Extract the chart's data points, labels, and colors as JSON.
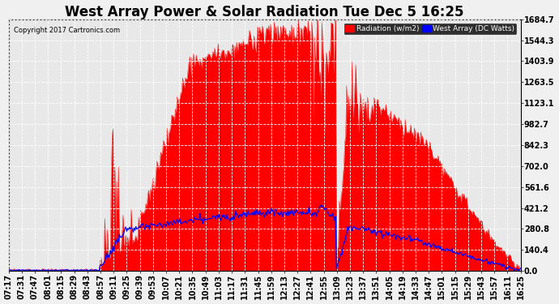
{
  "title": "West Array Power & Solar Radiation Tue Dec 5 16:25",
  "copyright": "Copyright 2017 Cartronics.com",
  "background_color": "#f0f0f0",
  "plot_bg_color": "#e8e8e8",
  "grid_color": "#ffffff",
  "yticks": [
    0.0,
    140.4,
    280.8,
    421.2,
    561.6,
    702.0,
    842.3,
    982.7,
    1123.1,
    1263.5,
    1403.9,
    1544.3,
    1684.7
  ],
  "ymax": 1684.7,
  "ymin": 0.0,
  "radiation_color": "#ff0000",
  "power_color": "#0000ff",
  "legend_radiation_label": "Radiation (w/m2)",
  "legend_power_label": "West Array (DC Watts)",
  "title_fontsize": 12,
  "tick_fontsize": 7,
  "time_labels": [
    "07:17",
    "07:31",
    "07:47",
    "08:01",
    "08:15",
    "08:29",
    "08:43",
    "08:57",
    "09:11",
    "09:25",
    "09:39",
    "09:53",
    "10:07",
    "10:21",
    "10:35",
    "10:49",
    "11:03",
    "11:17",
    "11:31",
    "11:45",
    "11:59",
    "12:13",
    "12:27",
    "12:41",
    "12:55",
    "13:09",
    "13:23",
    "13:37",
    "13:51",
    "14:05",
    "14:19",
    "14:33",
    "14:47",
    "15:01",
    "15:15",
    "15:29",
    "15:43",
    "15:57",
    "16:11",
    "16:25"
  ],
  "n_labels": 40,
  "n_points": 560
}
